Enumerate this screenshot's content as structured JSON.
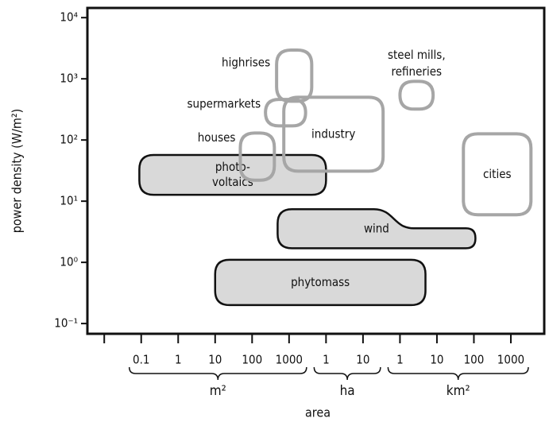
{
  "chart_data": {
    "type": "region",
    "xlabel": "area",
    "ylabel": "power density (W/m²)",
    "xscale": "log",
    "yscale": "log",
    "xlim": [
      0.0035,
      8000000000
    ],
    "ylim": [
      0.068,
      14400
    ],
    "xticks": [
      {
        "value": 0.01,
        "label": null
      },
      0.1,
      1,
      10,
      100,
      1000,
      {
        "value": 10000,
        "label": "1"
      },
      {
        "value": 100000,
        "label": "10"
      },
      {
        "value": 1000000,
        "label": "1"
      },
      {
        "value": 10000000,
        "label": "10"
      },
      {
        "value": 100000000,
        "label": "100"
      },
      {
        "value": 1000000000,
        "label": "1000"
      }
    ],
    "yticks": [
      {
        "value": 0.1,
        "label": "10⁻¹"
      },
      {
        "value": 1,
        "label": "10⁰"
      },
      {
        "value": 10,
        "label": "10¹"
      },
      {
        "value": 100,
        "label": "10²"
      },
      {
        "value": 1000,
        "label": "10³"
      },
      {
        "value": 10000,
        "label": "10⁴"
      }
    ],
    "xgroups": [
      {
        "label": "m²",
        "from": 0.1,
        "to": 1000
      },
      {
        "label": "ha",
        "from": 10000,
        "to": 100000
      },
      {
        "label": "km²",
        "from": 1000000,
        "to": 1000000000
      }
    ],
    "regions": [
      {
        "label": [
          "photo-",
          "voltaics"
        ],
        "x": [
          0.089,
          10000
        ],
        "y": [
          12.7,
          57
        ],
        "fill": "#d9d9d9",
        "color": "#111111"
      },
      {
        "label": [
          "phytomass"
        ],
        "x": [
          10,
          4900000
        ],
        "y": [
          0.2,
          1.1
        ],
        "fill": "#d9d9d9",
        "color": "#111111"
      },
      {
        "label": [
          "wind"
        ],
        "x": [
          490,
          110000000
        ],
        "y": [
          1.7,
          7.4
        ],
        "tail_start": 680000,
        "tail_top": 3.6,
        "fill": "#d9d9d9",
        "color": "#111111"
      },
      {
        "label": [
          "houses"
        ],
        "x": [
          48,
          400
        ],
        "y": [
          22,
          130
        ],
        "fill": null,
        "color": "#a6a6a6"
      },
      {
        "label": [
          "supermarkets"
        ],
        "x": [
          230,
          2800
        ],
        "y": [
          170,
          460
        ],
        "fill": null,
        "color": "#a6a6a6"
      },
      {
        "label": [
          "highrises"
        ],
        "x": [
          460,
          4100
        ],
        "y": [
          430,
          2950
        ],
        "fill": null,
        "color": "#a6a6a6"
      },
      {
        "label": [
          "industry"
        ],
        "x": [
          720,
          350000
        ],
        "y": [
          31,
          500
        ],
        "fill": null,
        "color": "#a6a6a6"
      },
      {
        "label": [
          "steel mills,",
          "refineries"
        ],
        "x": [
          1000000,
          7900000
        ],
        "y": [
          320,
          910
        ],
        "fill": null,
        "color": "#a6a6a6"
      },
      {
        "label": [
          "cities"
        ],
        "x": [
          52000000,
          3500000000
        ],
        "y": [
          6,
          126
        ],
        "fill": null,
        "color": "#a6a6a6"
      }
    ]
  }
}
